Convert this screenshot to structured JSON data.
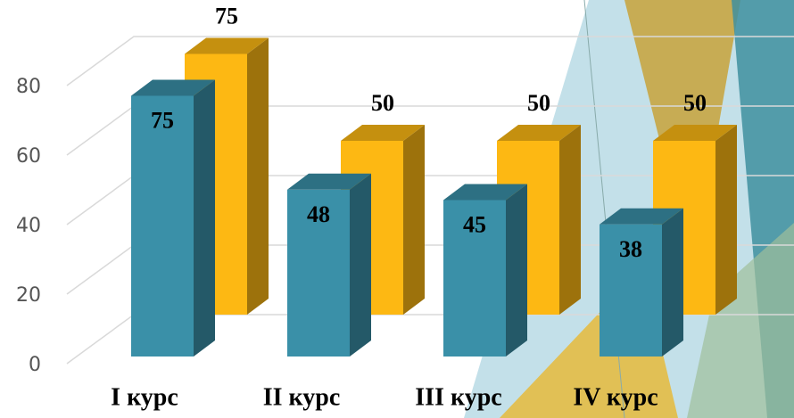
{
  "chart_data": {
    "type": "bar3d",
    "categories": [
      "I курс",
      "II курс",
      "III курс",
      "IV курс"
    ],
    "series": [
      {
        "color": "#3a90a8",
        "values": [
          75,
          48,
          45,
          38
        ]
      },
      {
        "color": "#fdb813",
        "values": [
          75,
          50,
          50,
          50
        ]
      }
    ],
    "ylim": [
      0,
      80
    ],
    "yticks": [
      0,
      20,
      40,
      60,
      80
    ],
    "grid": true
  }
}
